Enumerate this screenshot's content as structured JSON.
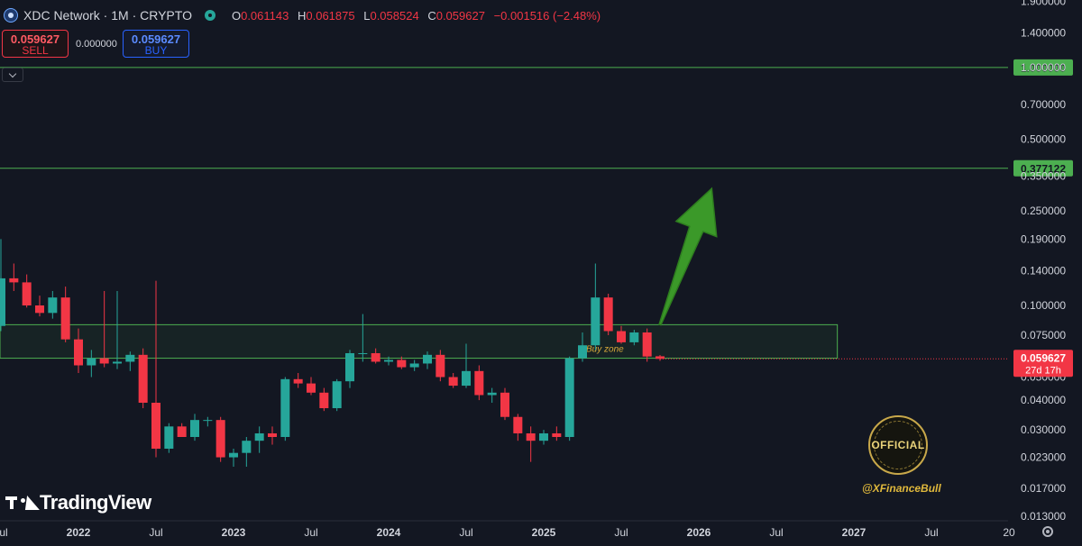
{
  "header": {
    "title": "XDC Network · 1M · CRYPTO",
    "ohlc": [
      {
        "k": "O",
        "v": "0.061143"
      },
      {
        "k": "H",
        "v": "0.061875"
      },
      {
        "k": "L",
        "v": "0.058524"
      },
      {
        "k": "C",
        "v": "0.059627"
      }
    ],
    "change": "−0.001516 (−2.48%)"
  },
  "trade": {
    "sell_price": "0.059627",
    "sell_label": "SELL",
    "spread": "0.000000",
    "buy_price": "0.059627",
    "buy_label": "BUY"
  },
  "watermark": {
    "brand": "TradingView",
    "seal_text": "OFFICIAL",
    "handle": "@XFinanceBull"
  },
  "colors": {
    "background": "#131722",
    "up": "#26a69a",
    "down": "#f23645",
    "level_line": "#4caf50",
    "zone": "#4caf50",
    "arrow": "#43b02a",
    "zone_label": "#d8a93a"
  },
  "chart_data": {
    "type": "candlestick",
    "scale": "log",
    "y_ticks": [
      1.9,
      1.4,
      1.0,
      0.7,
      0.5,
      0.35,
      0.25,
      0.19,
      0.14,
      0.1,
      0.075,
      0.05,
      0.04,
      0.03,
      0.023,
      0.017,
      0.013
    ],
    "y_tick_labels": [
      "1.900000",
      "1.400000",
      "1.000000",
      "0.700000",
      "0.500000",
      "0.350000",
      "0.250000",
      "0.190000",
      "0.140000",
      "0.100000",
      "0.075000",
      "0.050000",
      "0.040000",
      "0.030000",
      "0.023000",
      "0.017000",
      "0.013000"
    ],
    "x_ticks": [
      {
        "label": "Jul",
        "date": "2021-07"
      },
      {
        "label": "2022",
        "date": "2022-01"
      },
      {
        "label": "Jul",
        "date": "2022-07"
      },
      {
        "label": "2023",
        "date": "2023-01"
      },
      {
        "label": "Jul",
        "date": "2023-07"
      },
      {
        "label": "2024",
        "date": "2024-01"
      },
      {
        "label": "Jul",
        "date": "2024-07"
      },
      {
        "label": "2025",
        "date": "2025-01"
      },
      {
        "label": "Jul",
        "date": "2025-07"
      },
      {
        "label": "2026",
        "date": "2026-01"
      },
      {
        "label": "Jul",
        "date": "2026-07"
      },
      {
        "label": "2027",
        "date": "2027-01"
      },
      {
        "label": "Jul",
        "date": "2027-07"
      },
      {
        "label": "20",
        "date": "2028-01"
      }
    ],
    "candles": [
      {
        "d": "2021-06",
        "o": 0.06,
        "h": 0.085,
        "l": 0.055,
        "c": 0.082
      },
      {
        "d": "2021-07",
        "o": 0.082,
        "h": 0.19,
        "l": 0.078,
        "c": 0.13
      },
      {
        "d": "2021-08",
        "o": 0.13,
        "h": 0.15,
        "l": 0.115,
        "c": 0.125
      },
      {
        "d": "2021-09",
        "o": 0.125,
        "h": 0.135,
        "l": 0.098,
        "c": 0.1
      },
      {
        "d": "2021-10",
        "o": 0.1,
        "h": 0.11,
        "l": 0.09,
        "c": 0.093
      },
      {
        "d": "2021-11",
        "o": 0.093,
        "h": 0.115,
        "l": 0.088,
        "c": 0.108
      },
      {
        "d": "2021-12",
        "o": 0.108,
        "h": 0.12,
        "l": 0.07,
        "c": 0.072
      },
      {
        "d": "2022-01",
        "o": 0.072,
        "h": 0.08,
        "l": 0.052,
        "c": 0.056
      },
      {
        "d": "2022-02",
        "o": 0.056,
        "h": 0.065,
        "l": 0.05,
        "c": 0.06
      },
      {
        "d": "2022-03",
        "o": 0.06,
        "h": 0.115,
        "l": 0.055,
        "c": 0.057
      },
      {
        "d": "2022-04",
        "o": 0.057,
        "h": 0.115,
        "l": 0.054,
        "c": 0.058
      },
      {
        "d": "2022-05",
        "o": 0.058,
        "h": 0.064,
        "l": 0.053,
        "c": 0.062
      },
      {
        "d": "2022-06",
        "o": 0.062,
        "h": 0.066,
        "l": 0.037,
        "c": 0.039
      },
      {
        "d": "2022-07",
        "o": 0.039,
        "h": 0.127,
        "l": 0.023,
        "c": 0.025
      },
      {
        "d": "2022-08",
        "o": 0.025,
        "h": 0.032,
        "l": 0.024,
        "c": 0.031
      },
      {
        "d": "2022-09",
        "o": 0.031,
        "h": 0.032,
        "l": 0.028,
        "c": 0.028
      },
      {
        "d": "2022-10",
        "o": 0.028,
        "h": 0.035,
        "l": 0.027,
        "c": 0.033
      },
      {
        "d": "2022-11",
        "o": 0.033,
        "h": 0.034,
        "l": 0.031,
        "c": 0.033
      },
      {
        "d": "2022-12",
        "o": 0.033,
        "h": 0.034,
        "l": 0.022,
        "c": 0.023
      },
      {
        "d": "2023-01",
        "o": 0.023,
        "h": 0.025,
        "l": 0.021,
        "c": 0.024
      },
      {
        "d": "2023-02",
        "o": 0.024,
        "h": 0.028,
        "l": 0.021,
        "c": 0.027
      },
      {
        "d": "2023-03",
        "o": 0.027,
        "h": 0.031,
        "l": 0.024,
        "c": 0.029
      },
      {
        "d": "2023-04",
        "o": 0.029,
        "h": 0.031,
        "l": 0.026,
        "c": 0.028
      },
      {
        "d": "2023-05",
        "o": 0.028,
        "h": 0.05,
        "l": 0.027,
        "c": 0.049
      },
      {
        "d": "2023-06",
        "o": 0.049,
        "h": 0.052,
        "l": 0.045,
        "c": 0.047
      },
      {
        "d": "2023-07",
        "o": 0.047,
        "h": 0.05,
        "l": 0.042,
        "c": 0.043
      },
      {
        "d": "2023-08",
        "o": 0.043,
        "h": 0.045,
        "l": 0.036,
        "c": 0.037
      },
      {
        "d": "2023-09",
        "o": 0.037,
        "h": 0.049,
        "l": 0.036,
        "c": 0.048
      },
      {
        "d": "2023-10",
        "o": 0.048,
        "h": 0.065,
        "l": 0.045,
        "c": 0.063
      },
      {
        "d": "2023-11",
        "o": 0.063,
        "h": 0.092,
        "l": 0.058,
        "c": 0.063
      },
      {
        "d": "2023-12",
        "o": 0.063,
        "h": 0.066,
        "l": 0.057,
        "c": 0.058
      },
      {
        "d": "2024-01",
        "o": 0.058,
        "h": 0.061,
        "l": 0.056,
        "c": 0.059
      },
      {
        "d": "2024-02",
        "o": 0.059,
        "h": 0.061,
        "l": 0.054,
        "c": 0.055
      },
      {
        "d": "2024-03",
        "o": 0.055,
        "h": 0.059,
        "l": 0.053,
        "c": 0.057
      },
      {
        "d": "2024-04",
        "o": 0.057,
        "h": 0.064,
        "l": 0.054,
        "c": 0.062
      },
      {
        "d": "2024-05",
        "o": 0.062,
        "h": 0.065,
        "l": 0.048,
        "c": 0.05
      },
      {
        "d": "2024-06",
        "o": 0.05,
        "h": 0.052,
        "l": 0.045,
        "c": 0.046
      },
      {
        "d": "2024-07",
        "o": 0.046,
        "h": 0.069,
        "l": 0.045,
        "c": 0.053
      },
      {
        "d": "2024-08",
        "o": 0.053,
        "h": 0.056,
        "l": 0.04,
        "c": 0.042
      },
      {
        "d": "2024-09",
        "o": 0.042,
        "h": 0.045,
        "l": 0.039,
        "c": 0.043
      },
      {
        "d": "2024-10",
        "o": 0.043,
        "h": 0.045,
        "l": 0.033,
        "c": 0.034
      },
      {
        "d": "2024-11",
        "o": 0.034,
        "h": 0.035,
        "l": 0.027,
        "c": 0.029
      },
      {
        "d": "2024-12",
        "o": 0.029,
        "h": 0.031,
        "l": 0.022,
        "c": 0.027
      },
      {
        "d": "2025-01",
        "o": 0.027,
        "h": 0.03,
        "l": 0.026,
        "c": 0.029
      },
      {
        "d": "2025-02",
        "o": 0.029,
        "h": 0.031,
        "l": 0.027,
        "c": 0.028
      },
      {
        "d": "2025-03",
        "o": 0.028,
        "h": 0.061,
        "l": 0.027,
        "c": 0.06
      },
      {
        "d": "2025-04",
        "o": 0.06,
        "h": 0.077,
        "l": 0.058,
        "c": 0.068
      },
      {
        "d": "2025-05",
        "o": 0.068,
        "h": 0.15,
        "l": 0.065,
        "c": 0.108
      },
      {
        "d": "2025-06",
        "o": 0.108,
        "h": 0.112,
        "l": 0.075,
        "c": 0.078
      },
      {
        "d": "2025-07",
        "o": 0.078,
        "h": 0.082,
        "l": 0.069,
        "c": 0.07
      },
      {
        "d": "2025-08",
        "o": 0.07,
        "h": 0.079,
        "l": 0.068,
        "c": 0.077
      },
      {
        "d": "2025-09",
        "o": 0.077,
        "h": 0.08,
        "l": 0.058,
        "c": 0.061
      },
      {
        "d": "2025-10",
        "o": 0.061143,
        "h": 0.061875,
        "l": 0.058524,
        "c": 0.059627
      }
    ],
    "levels": [
      {
        "value": 1.0,
        "label": "1.000000"
      },
      {
        "value": 0.377122,
        "label": "0.377122"
      }
    ],
    "zone": {
      "from": "2021-06",
      "to": "2026-12",
      "low": 0.06,
      "high": 0.083,
      "label": "Buy zone"
    },
    "arrow": {
      "from": {
        "date": "2025-10",
        "price": 0.083
      },
      "to": {
        "date": "2026-02",
        "price": 0.31
      }
    },
    "last_price": {
      "label": "0.059627",
      "countdown": "27d 17h"
    }
  }
}
